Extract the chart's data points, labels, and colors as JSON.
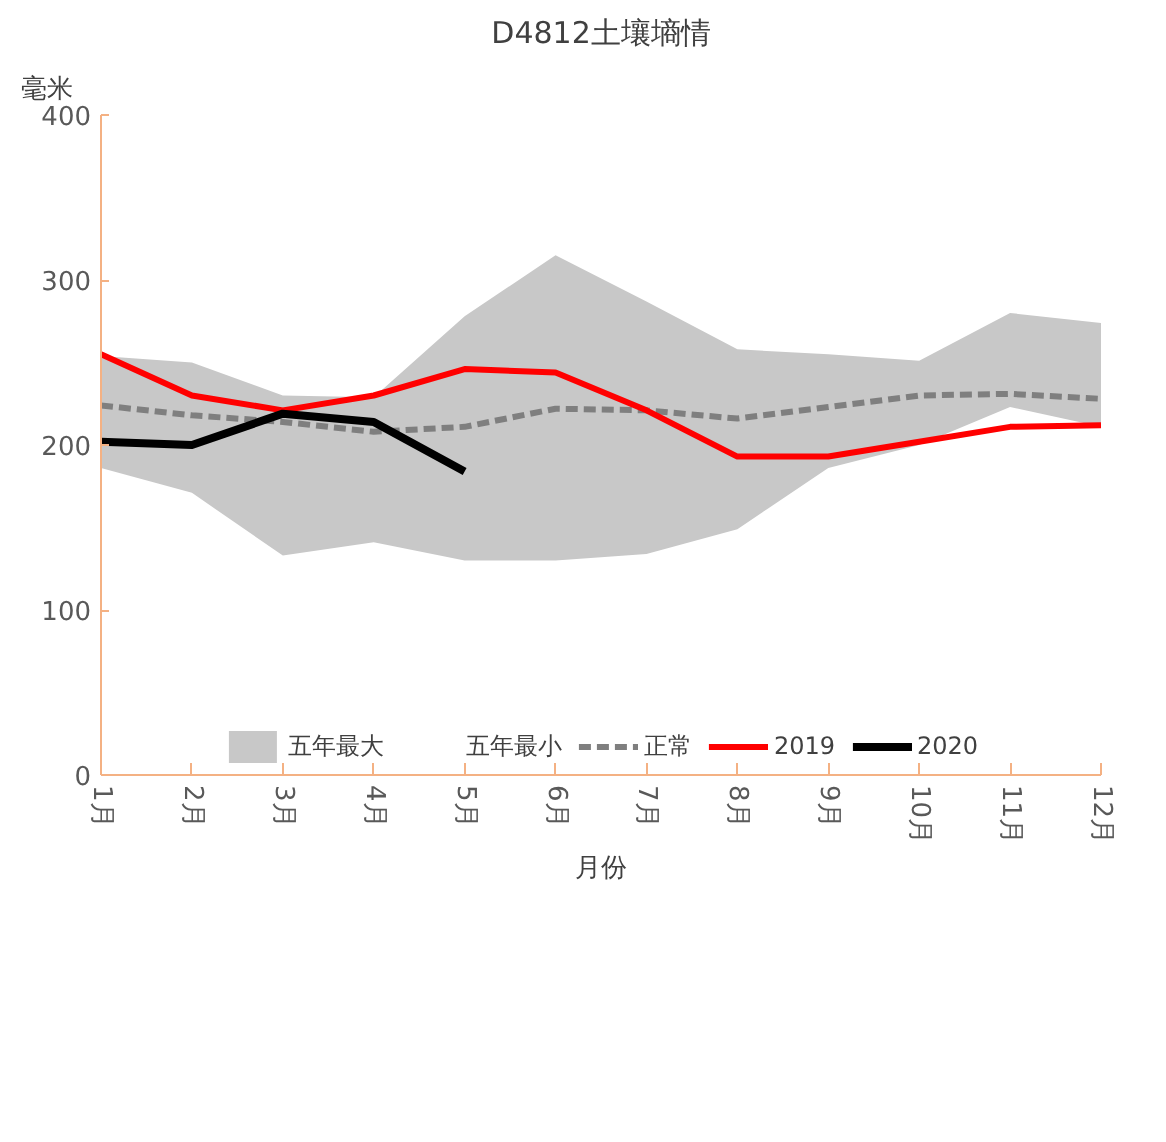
{
  "chart_data": {
    "type": "line",
    "title": "D4812土壤墒情",
    "ylabel": "毫米",
    "xlabel": "月份",
    "categories": [
      "1月",
      "2月",
      "3月",
      "4月",
      "5月",
      "6月",
      "7月",
      "8月",
      "9月",
      "10月",
      "11月",
      "12月"
    ],
    "ylim": [
      0,
      400
    ],
    "yticks": [
      0,
      100,
      200,
      300,
      400
    ],
    "grid": false,
    "legend": "bottom",
    "series": [
      {
        "name": "五年最大",
        "type": "area",
        "color": "#c8c8c8",
        "values": [
          254,
          250,
          230,
          229,
          278,
          315,
          287,
          258,
          255,
          251,
          280,
          274
        ]
      },
      {
        "name": "五年最小",
        "type": "area",
        "color": "#ffffff",
        "values": [
          186,
          171,
          133,
          141,
          130,
          130,
          134,
          149,
          186,
          200,
          223,
          211
        ]
      },
      {
        "name": "正常",
        "color": "#7f7f7f",
        "line_style": "dashed",
        "values": [
          224,
          218,
          214,
          208,
          211,
          222,
          221,
          216,
          223,
          230,
          231,
          228
        ]
      },
      {
        "name": "2019",
        "color": "#ff0000",
        "line_style": "solid",
        "values": [
          255,
          230,
          221,
          230,
          246,
          244,
          221,
          193,
          193,
          202,
          211,
          212
        ]
      },
      {
        "name": "2020",
        "color": "#000000",
        "line_style": "solid",
        "values": [
          202,
          200,
          219,
          214,
          184,
          null,
          null,
          null,
          null,
          null,
          null,
          null
        ]
      }
    ]
  }
}
